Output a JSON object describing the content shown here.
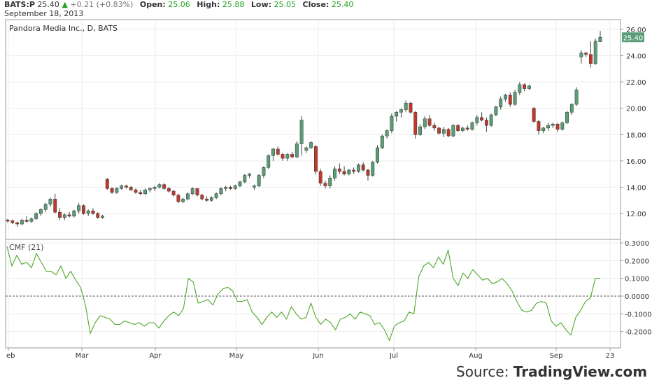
{
  "header": {
    "symbol": "BATS:P",
    "last": "25.40",
    "change": "+0.21 (+0.83%)",
    "open_label": "Open:",
    "open": "25.06",
    "high_label": "High:",
    "high": "25.88",
    "low_label": "Low:",
    "low": "25.05",
    "close_label": "Close:",
    "close": "25.40",
    "date": "September 18, 2013"
  },
  "chart_title": "Pandora Media Inc., D, BATS",
  "indicator_label": "CMF (21)",
  "last_price_tag": "25.40",
  "source": {
    "prefix": "Source: ",
    "brand": "TradingView.com"
  },
  "colors": {
    "up": "#5a9e78",
    "down": "#c0392b",
    "cmf_line": "#4ea82a",
    "tag": "#5a9e78",
    "grid": "#ececec"
  },
  "chart_data": [
    {
      "type": "candlestick",
      "title": "Pandora Media Inc., D, BATS",
      "x_ticks": [
        "eb",
        "Mar",
        "Apr",
        "May",
        "Jun",
        "Jul",
        "Aug",
        "Sep",
        "23"
      ],
      "y_ticks": [
        "12.00",
        "14.00",
        "16.00",
        "18.00",
        "20.00",
        "22.00",
        "24.00",
        "26.00"
      ],
      "ylim": [
        11,
        26.5
      ],
      "grid": true,
      "candles": [
        [
          11.5,
          11.6,
          11.3,
          11.45
        ],
        [
          11.45,
          11.55,
          11.2,
          11.3
        ],
        [
          11.3,
          11.4,
          11.0,
          11.2
        ],
        [
          11.2,
          11.6,
          11.1,
          11.5
        ],
        [
          11.5,
          11.8,
          11.3,
          11.4
        ],
        [
          11.4,
          11.7,
          11.3,
          11.6
        ],
        [
          11.6,
          12.1,
          11.5,
          12.0
        ],
        [
          12.0,
          12.4,
          11.8,
          12.3
        ],
        [
          12.3,
          12.8,
          12.1,
          12.7
        ],
        [
          12.7,
          13.2,
          12.5,
          13.1
        ],
        [
          13.1,
          13.5,
          12.0,
          12.1
        ],
        [
          12.1,
          12.4,
          11.5,
          11.7
        ],
        [
          11.7,
          12.0,
          11.5,
          11.9
        ],
        [
          11.9,
          12.1,
          11.7,
          11.8
        ],
        [
          11.8,
          12.3,
          11.7,
          12.2
        ],
        [
          12.2,
          12.8,
          12.0,
          12.6
        ],
        [
          12.6,
          12.7,
          11.9,
          12.0
        ],
        [
          12.0,
          12.3,
          11.8,
          12.2
        ],
        [
          12.2,
          12.4,
          11.9,
          12.0
        ],
        [
          12.0,
          12.1,
          11.6,
          11.7
        ],
        [
          11.7,
          11.9,
          11.6,
          11.8
        ],
        [
          14.6,
          14.7,
          13.8,
          13.9
        ],
        [
          13.9,
          14.0,
          13.5,
          13.6
        ],
        [
          13.6,
          14.0,
          13.5,
          13.9
        ],
        [
          13.9,
          14.2,
          13.8,
          14.1
        ],
        [
          14.1,
          14.2,
          13.9,
          14.0
        ],
        [
          14.0,
          14.1,
          13.7,
          13.8
        ],
        [
          13.8,
          13.9,
          13.5,
          13.6
        ],
        [
          13.6,
          13.8,
          13.4,
          13.5
        ],
        [
          13.5,
          13.9,
          13.4,
          13.8
        ],
        [
          13.8,
          14.0,
          13.6,
          13.9
        ],
        [
          13.9,
          14.1,
          13.7,
          14.0
        ],
        [
          14.0,
          14.3,
          13.9,
          14.2
        ],
        [
          14.2,
          14.3,
          13.8,
          13.9
        ],
        [
          13.9,
          14.0,
          13.6,
          13.7
        ],
        [
          13.7,
          13.8,
          13.3,
          13.4
        ],
        [
          13.4,
          13.5,
          12.8,
          12.9
        ],
        [
          12.9,
          13.2,
          12.8,
          13.1
        ],
        [
          13.1,
          13.6,
          13.0,
          13.5
        ],
        [
          13.5,
          14.0,
          13.4,
          13.9
        ],
        [
          13.9,
          13.9,
          13.3,
          13.4
        ],
        [
          13.4,
          13.5,
          13.0,
          13.1
        ],
        [
          13.1,
          13.3,
          12.9,
          13.0
        ],
        [
          13.0,
          13.3,
          12.9,
          13.2
        ],
        [
          13.2,
          13.6,
          13.1,
          13.5
        ],
        [
          13.5,
          14.0,
          13.4,
          13.9
        ],
        [
          13.9,
          14.1,
          13.7,
          14.0
        ],
        [
          14.0,
          14.1,
          13.8,
          13.9
        ],
        [
          13.9,
          14.2,
          13.8,
          14.1
        ],
        [
          14.1,
          14.5,
          14.0,
          14.4
        ],
        [
          14.4,
          15.0,
          14.3,
          14.9
        ],
        [
          14.9,
          15.1,
          14.7,
          15.0
        ],
        [
          14.0,
          14.2,
          13.8,
          14.1
        ],
        [
          14.1,
          15.0,
          14.0,
          14.9
        ],
        [
          14.9,
          15.6,
          14.7,
          15.5
        ],
        [
          15.5,
          16.5,
          15.4,
          16.4
        ],
        [
          16.4,
          17.0,
          16.0,
          16.9
        ],
        [
          16.9,
          17.1,
          16.4,
          16.5
        ],
        [
          16.5,
          16.6,
          16.0,
          16.2
        ],
        [
          16.2,
          16.6,
          16.0,
          16.5
        ],
        [
          16.5,
          16.7,
          16.2,
          16.3
        ],
        [
          16.3,
          17.5,
          16.2,
          17.3
        ],
        [
          17.3,
          19.4,
          16.4,
          19.1
        ],
        [
          16.8,
          17.1,
          16.6,
          17.0
        ],
        [
          17.0,
          17.5,
          16.9,
          17.4
        ],
        [
          17.1,
          17.2,
          15.0,
          15.2
        ],
        [
          15.2,
          15.4,
          14.1,
          14.3
        ],
        [
          14.3,
          14.5,
          13.9,
          14.1
        ],
        [
          14.1,
          14.9,
          13.9,
          14.7
        ],
        [
          14.7,
          15.6,
          14.5,
          15.4
        ],
        [
          15.4,
          15.8,
          15.0,
          15.2
        ],
        [
          15.2,
          15.6,
          14.9,
          15.0
        ],
        [
          15.0,
          15.4,
          14.9,
          15.3
        ],
        [
          15.3,
          15.5,
          15.0,
          15.2
        ],
        [
          15.2,
          15.8,
          15.1,
          15.7
        ],
        [
          15.7,
          15.9,
          15.2,
          15.3
        ],
        [
          15.3,
          15.4,
          14.5,
          14.9
        ],
        [
          14.9,
          16.0,
          14.8,
          15.9
        ],
        [
          15.9,
          17.2,
          15.8,
          17.0
        ],
        [
          17.0,
          18.0,
          16.9,
          17.9
        ],
        [
          17.9,
          18.4,
          17.7,
          18.3
        ],
        [
          18.3,
          19.6,
          18.1,
          19.4
        ],
        [
          19.4,
          19.8,
          19.0,
          19.7
        ],
        [
          19.7,
          20.0,
          19.3,
          19.9
        ],
        [
          19.9,
          20.6,
          19.7,
          20.4
        ],
        [
          20.4,
          20.5,
          19.6,
          19.7
        ],
        [
          19.7,
          19.8,
          17.7,
          18.0
        ],
        [
          18.0,
          18.8,
          17.9,
          18.6
        ],
        [
          18.6,
          19.4,
          18.4,
          19.2
        ],
        [
          19.2,
          19.5,
          18.6,
          18.7
        ],
        [
          18.7,
          18.9,
          18.3,
          18.5
        ],
        [
          18.5,
          18.6,
          18.0,
          18.1
        ],
        [
          18.1,
          18.6,
          17.8,
          18.4
        ],
        [
          18.4,
          18.5,
          17.8,
          17.9
        ],
        [
          17.9,
          18.8,
          17.8,
          18.7
        ],
        [
          18.7,
          18.8,
          18.2,
          18.3
        ],
        [
          18.3,
          18.6,
          18.2,
          18.5
        ],
        [
          18.5,
          18.7,
          18.3,
          18.4
        ],
        [
          18.4,
          19.0,
          18.3,
          18.9
        ],
        [
          18.9,
          19.5,
          18.7,
          19.3
        ],
        [
          19.3,
          19.7,
          19.0,
          19.1
        ],
        [
          19.1,
          19.3,
          18.2,
          18.7
        ],
        [
          18.7,
          19.6,
          18.6,
          19.5
        ],
        [
          19.5,
          20.2,
          19.4,
          20.1
        ],
        [
          20.1,
          20.9,
          19.9,
          20.7
        ],
        [
          20.7,
          21.1,
          20.5,
          21.0
        ],
        [
          21.0,
          21.2,
          20.1,
          20.3
        ],
        [
          20.3,
          21.4,
          20.2,
          21.2
        ],
        [
          21.2,
          22.0,
          21.0,
          21.8
        ],
        [
          21.8,
          21.9,
          21.3,
          21.5
        ],
        [
          21.5,
          21.8,
          21.4,
          21.7
        ],
        [
          20.0,
          20.1,
          18.9,
          19.0
        ],
        [
          19.0,
          19.1,
          18.0,
          18.3
        ],
        [
          18.3,
          18.6,
          18.1,
          18.5
        ],
        [
          18.5,
          18.9,
          18.3,
          18.7
        ],
        [
          18.7,
          18.9,
          18.5,
          18.8
        ],
        [
          18.8,
          18.9,
          18.2,
          18.4
        ],
        [
          18.4,
          19.0,
          18.3,
          18.9
        ],
        [
          18.9,
          19.8,
          18.8,
          19.7
        ],
        [
          19.7,
          20.4,
          19.5,
          20.3
        ],
        [
          20.3,
          21.6,
          20.2,
          21.4
        ],
        [
          23.9,
          24.4,
          23.4,
          24.2
        ],
        [
          24.2,
          24.3,
          23.9,
          24.1
        ],
        [
          24.1,
          25.1,
          23.1,
          23.4
        ],
        [
          23.4,
          25.3,
          23.3,
          25.1
        ],
        [
          25.06,
          25.88,
          25.05,
          25.4
        ]
      ]
    },
    {
      "type": "line",
      "title": "CMF (21)",
      "y_ticks": [
        "0.3000",
        "0.2000",
        "0.1000",
        "0.0000",
        "-0.1000",
        "-0.2000"
      ],
      "ylim": [
        -0.27,
        0.32
      ],
      "zero_line": true,
      "values": [
        0.28,
        0.17,
        0.23,
        0.18,
        0.19,
        0.16,
        0.24,
        0.19,
        0.14,
        0.14,
        0.12,
        0.17,
        0.1,
        0.14,
        0.09,
        0.05,
        -0.05,
        -0.21,
        -0.15,
        -0.11,
        -0.12,
        -0.13,
        -0.16,
        -0.16,
        -0.14,
        -0.15,
        -0.16,
        -0.15,
        -0.17,
        -0.15,
        -0.15,
        -0.18,
        -0.14,
        -0.11,
        -0.09,
        -0.11,
        -0.07,
        0.1,
        0.08,
        -0.04,
        -0.03,
        -0.02,
        -0.05,
        0.01,
        0.04,
        0.05,
        0.03,
        -0.03,
        -0.03,
        -0.02,
        -0.09,
        -0.12,
        -0.16,
        -0.12,
        -0.09,
        -0.12,
        -0.09,
        -0.13,
        -0.06,
        -0.1,
        -0.13,
        -0.12,
        -0.04,
        -0.12,
        -0.16,
        -0.13,
        -0.15,
        -0.19,
        -0.13,
        -0.12,
        -0.1,
        -0.13,
        -0.09,
        -0.1,
        -0.11,
        -0.16,
        -0.15,
        -0.19,
        -0.25,
        -0.17,
        -0.15,
        -0.14,
        -0.09,
        -0.1,
        0.11,
        0.17,
        0.19,
        0.16,
        0.22,
        0.18,
        0.26,
        0.1,
        0.06,
        0.13,
        0.1,
        0.15,
        0.12,
        0.09,
        0.1,
        0.07,
        0.08,
        0.1,
        0.07,
        0.03,
        -0.03,
        -0.08,
        -0.09,
        -0.08,
        -0.04,
        -0.03,
        -0.04,
        -0.14,
        -0.17,
        -0.15,
        -0.19,
        -0.22,
        -0.12,
        -0.08,
        -0.03,
        -0.01,
        0.1,
        0.1
      ]
    }
  ]
}
